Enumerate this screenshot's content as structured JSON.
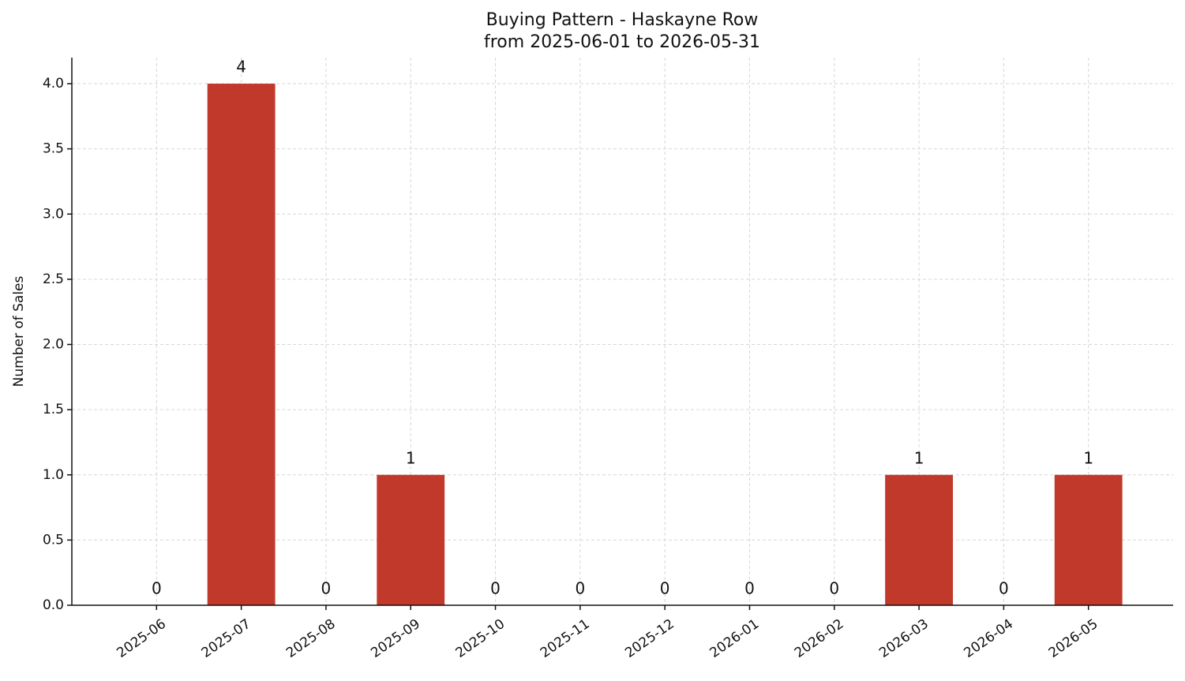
{
  "chart_data": {
    "type": "bar",
    "title": "Buying Pattern - Haskayne Row",
    "subtitle": "from 2025-06-01 to 2026-05-31",
    "y_label": "Number of Sales",
    "categories": [
      "2025-06",
      "2025-07",
      "2025-08",
      "2025-09",
      "2025-10",
      "2025-11",
      "2025-12",
      "2026-01",
      "2026-02",
      "2026-03",
      "2026-04",
      "2026-05"
    ],
    "values": [
      0,
      4,
      0,
      1,
      0,
      0,
      0,
      0,
      0,
      1,
      0,
      1
    ],
    "color": "#c0392b",
    "ylim": [
      0,
      4.2
    ],
    "yticks": [
      {
        "value": 0,
        "label": "0.0"
      },
      0.5,
      {
        "value": 1,
        "label": "1.0"
      },
      1.5,
      {
        "value": 2,
        "label": "2.0"
      },
      2.5,
      {
        "value": 3,
        "label": "3.0"
      },
      3.5,
      {
        "value": 4,
        "label": "4.0"
      }
    ],
    "grid": true
  }
}
